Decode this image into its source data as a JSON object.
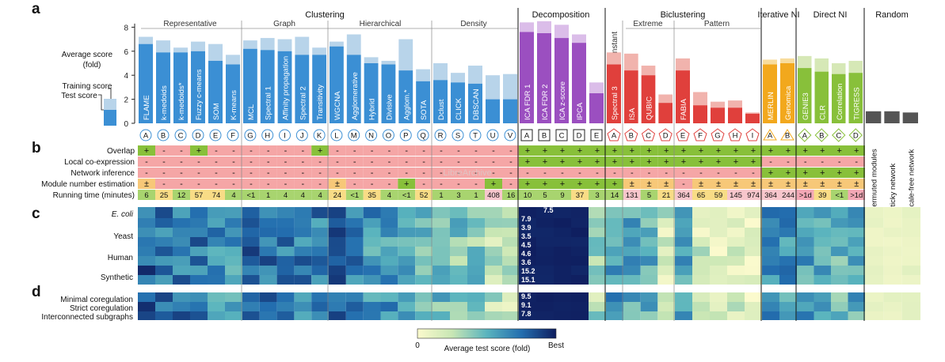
{
  "panels": [
    "a",
    "b",
    "c",
    "d"
  ],
  "groups": [
    {
      "label": "Clustering",
      "subs": [
        "Representative",
        "Graph",
        "Hierarchical",
        "Density"
      ]
    },
    {
      "label": "Decomposition",
      "subs": []
    },
    {
      "label": "Biclustering",
      "subs": [
        "Constant",
        "Extreme",
        "Pattern"
      ]
    },
    {
      "label": "Iterative NI",
      "subs": []
    },
    {
      "label": "Direct NI",
      "subs": []
    },
    {
      "label": "Random",
      "subs": []
    }
  ],
  "legend_a": {
    "ylabel_line1": "Average score",
    "ylabel_line2": "(fold)",
    "training": "Training score",
    "test": "Test score"
  },
  "chart_data": {
    "type": "bar",
    "ylabel": "Average score (fold)",
    "ylim": [
      0,
      8
    ],
    "yticks": [
      0,
      2,
      4,
      6,
      8
    ],
    "series_names": [
      "Training score",
      "Test score"
    ],
    "methods": [
      {
        "name": "FLAME",
        "letter": "A",
        "test": 6.6,
        "train": 7.2
      },
      {
        "name": "k-medoids",
        "letter": "B",
        "test": 5.9,
        "train": 6.9
      },
      {
        "name": "k-medoids*",
        "letter": "C",
        "test": 5.9,
        "train": 6.3
      },
      {
        "name": "Fuzzy c-means",
        "letter": "D",
        "test": 6.0,
        "train": 6.8
      },
      {
        "name": "SOM",
        "letter": "E",
        "test": 5.2,
        "train": 6.6
      },
      {
        "name": "K-means",
        "letter": "F",
        "test": 4.9,
        "train": 5.7
      },
      {
        "name": "MCL",
        "letter": "G",
        "test": 6.2,
        "train": 6.9
      },
      {
        "name": "Spectral 1",
        "letter": "H",
        "test": 6.1,
        "train": 7.1
      },
      {
        "name": "Affinity propagation",
        "letter": "I",
        "test": 6.0,
        "train": 7.0
      },
      {
        "name": "Spectral 2",
        "letter": "J",
        "test": 5.7,
        "train": 7.2
      },
      {
        "name": "Transitivity",
        "letter": "K",
        "test": 5.7,
        "train": 6.3
      },
      {
        "name": "WGCNA",
        "letter": "L",
        "test": 6.4,
        "train": 6.8
      },
      {
        "name": "Agglomerative",
        "letter": "M",
        "test": 5.7,
        "train": 7.4
      },
      {
        "name": "Hybrid",
        "letter": "N",
        "test": 5.0,
        "train": 5.5
      },
      {
        "name": "Divisive",
        "letter": "O",
        "test": 4.9,
        "train": 5.2
      },
      {
        "name": "Agglom.*",
        "letter": "P",
        "test": 4.4,
        "train": 7.0
      },
      {
        "name": "SOTA",
        "letter": "Q",
        "test": 3.5,
        "train": 4.5
      },
      {
        "name": "Dclust",
        "letter": "R",
        "test": 3.6,
        "train": 5.0
      },
      {
        "name": "CLICK",
        "letter": "S",
        "test": 3.4,
        "train": 4.2
      },
      {
        "name": "DBSCAN",
        "letter": "T",
        "test": 3.3,
        "train": 4.8
      },
      {
        "name": "",
        "letter": "U",
        "test": 2.0,
        "train": 4.0
      },
      {
        "name": "",
        "letter": "V",
        "test": 2.0,
        "train": 4.1
      },
      {
        "name": "ICA FDR 1",
        "letter": "A",
        "test": 7.6,
        "train": 8.4
      },
      {
        "name": "ICA FDR 2",
        "letter": "B",
        "test": 7.5,
        "train": 8.5
      },
      {
        "name": "ICA z-score",
        "letter": "C",
        "test": 7.1,
        "train": 8.2
      },
      {
        "name": "IPCA",
        "letter": "D",
        "test": 6.7,
        "train": 7.4
      },
      {
        "name": "",
        "letter": "E",
        "test": 2.5,
        "train": 3.4
      },
      {
        "name": "Spectral 3",
        "letter": "A",
        "test": 4.9,
        "train": 5.9
      },
      {
        "name": "ISA",
        "letter": "B",
        "test": 4.4,
        "train": 5.8
      },
      {
        "name": "QUBIC",
        "letter": "C",
        "test": 4.0,
        "train": 4.8
      },
      {
        "name": "",
        "letter": "D",
        "test": 1.7,
        "train": 2.4
      },
      {
        "name": "FABIA",
        "letter": "E",
        "test": 4.4,
        "train": 5.4
      },
      {
        "name": "",
        "letter": "F",
        "test": 1.5,
        "train": 2.6
      },
      {
        "name": "",
        "letter": "G",
        "test": 1.3,
        "train": 1.8
      },
      {
        "name": "",
        "letter": "H",
        "test": 1.3,
        "train": 1.9
      },
      {
        "name": "",
        "letter": "I",
        "test": 0.8,
        "train": 0.9
      },
      {
        "name": "MERLIN",
        "letter": "A",
        "test": 4.9,
        "train": 5.3
      },
      {
        "name": "Genomica",
        "letter": "B",
        "test": 5.0,
        "train": 5.4
      },
      {
        "name": "GENIE3",
        "letter": "A",
        "test": 4.6,
        "train": 5.6
      },
      {
        "name": "CLR",
        "letter": "B",
        "test": 4.3,
        "train": 5.4
      },
      {
        "name": "Correlation",
        "letter": "C",
        "test": 4.1,
        "train": 5.0
      },
      {
        "name": "TIGRESS",
        "letter": "D",
        "test": 4.2,
        "train": 5.2
      },
      {
        "name": "Permuted modules",
        "letter": "",
        "test": 1.0,
        "train": 1.0
      },
      {
        "name": "Sticky network",
        "letter": "",
        "test": 1.0,
        "train": 1.0
      },
      {
        "name": "Scale-free network",
        "letter": "",
        "test": 0.9,
        "train": 0.9
      }
    ],
    "properties": {
      "labels": [
        "Overlap",
        "Local co-expression",
        "Network inference",
        "Module number estimation",
        "Running time (minutes)"
      ],
      "overlap": [
        "+",
        "-",
        "-",
        "+",
        "-",
        "-",
        "-",
        "-",
        "-",
        "-",
        "+",
        "-",
        "-",
        "-",
        "-",
        "-",
        "-",
        "-",
        "-",
        "-",
        "-",
        "-",
        "+",
        "+",
        "+",
        "+",
        "+",
        "+",
        "+",
        "+",
        "+",
        "+",
        "+",
        "+",
        "+",
        "+",
        "+",
        "+",
        "+",
        "+",
        "+",
        "+"
      ],
      "local": [
        "-",
        "-",
        "-",
        "-",
        "-",
        "-",
        "-",
        "-",
        "-",
        "-",
        "-",
        "-",
        "-",
        "-",
        "-",
        "-",
        "-",
        "-",
        "-",
        "-",
        "-",
        "-",
        "+",
        "+",
        "+",
        "+",
        "+",
        "+",
        "+",
        "+",
        "+",
        "+",
        "+",
        "+",
        "+",
        "+",
        "-",
        "-",
        "-",
        "-",
        "-",
        "-"
      ],
      "network": [
        "-",
        "-",
        "-",
        "-",
        "-",
        "-",
        "-",
        "-",
        "-",
        "-",
        "-",
        "-",
        "-",
        "-",
        "-",
        "-",
        "-",
        "-",
        "-",
        "-",
        "-",
        "-",
        "-",
        "-",
        "-",
        "-",
        "-",
        "-",
        "-",
        "-",
        "-",
        "-",
        "-",
        "-",
        "-",
        "-",
        "+",
        "+",
        "+",
        "+",
        "+",
        "+"
      ],
      "modnum": [
        "±",
        "-",
        "-",
        "-",
        "-",
        "-",
        "-",
        "-",
        "-",
        "-",
        "-",
        "±",
        "-",
        "-",
        "-",
        "+",
        "-",
        "-",
        "-",
        "-",
        "+",
        "-",
        "+",
        "+",
        "+",
        "+",
        "+",
        "+",
        "±",
        "±",
        "±",
        "-",
        "±",
        "±",
        "±",
        "±",
        "±",
        "±",
        "±",
        "±",
        "±",
        "±"
      ],
      "runtime": [
        "6",
        "25",
        "12",
        "57",
        "74",
        "4",
        "<1",
        "1",
        "4",
        "4",
        "4",
        "24",
        "<1",
        "35",
        "4",
        "<1",
        "52",
        "1",
        "3",
        "1",
        "408",
        "16",
        "10",
        "5",
        "9",
        "37",
        "3",
        "14",
        "131",
        "5",
        "21",
        "364",
        "65",
        "59",
        "145",
        "974",
        "364",
        "244",
        ">1d",
        "39",
        "<1",
        ">1d"
      ]
    },
    "heatmap": {
      "colorbar_min": "0",
      "colorbar_max": "Best",
      "colorbar_label": "Average test score (fold)",
      "row_labels_c": [
        "E. coli",
        "Yeast",
        "Human",
        "Synthetic"
      ],
      "row_labels_d": [
        "Minimal coregulation",
        "Strict coregulation",
        "Interconnected subgraphs"
      ],
      "best_values_c": [
        "7.5",
        "7.9",
        "3.9",
        "3.5",
        "4.5",
        "4.6",
        "3.6",
        "15.2",
        "15.1"
      ],
      "best_values_d": [
        "9.5",
        "9.1",
        "7.8"
      ]
    }
  },
  "watermark": "LibreArchive"
}
